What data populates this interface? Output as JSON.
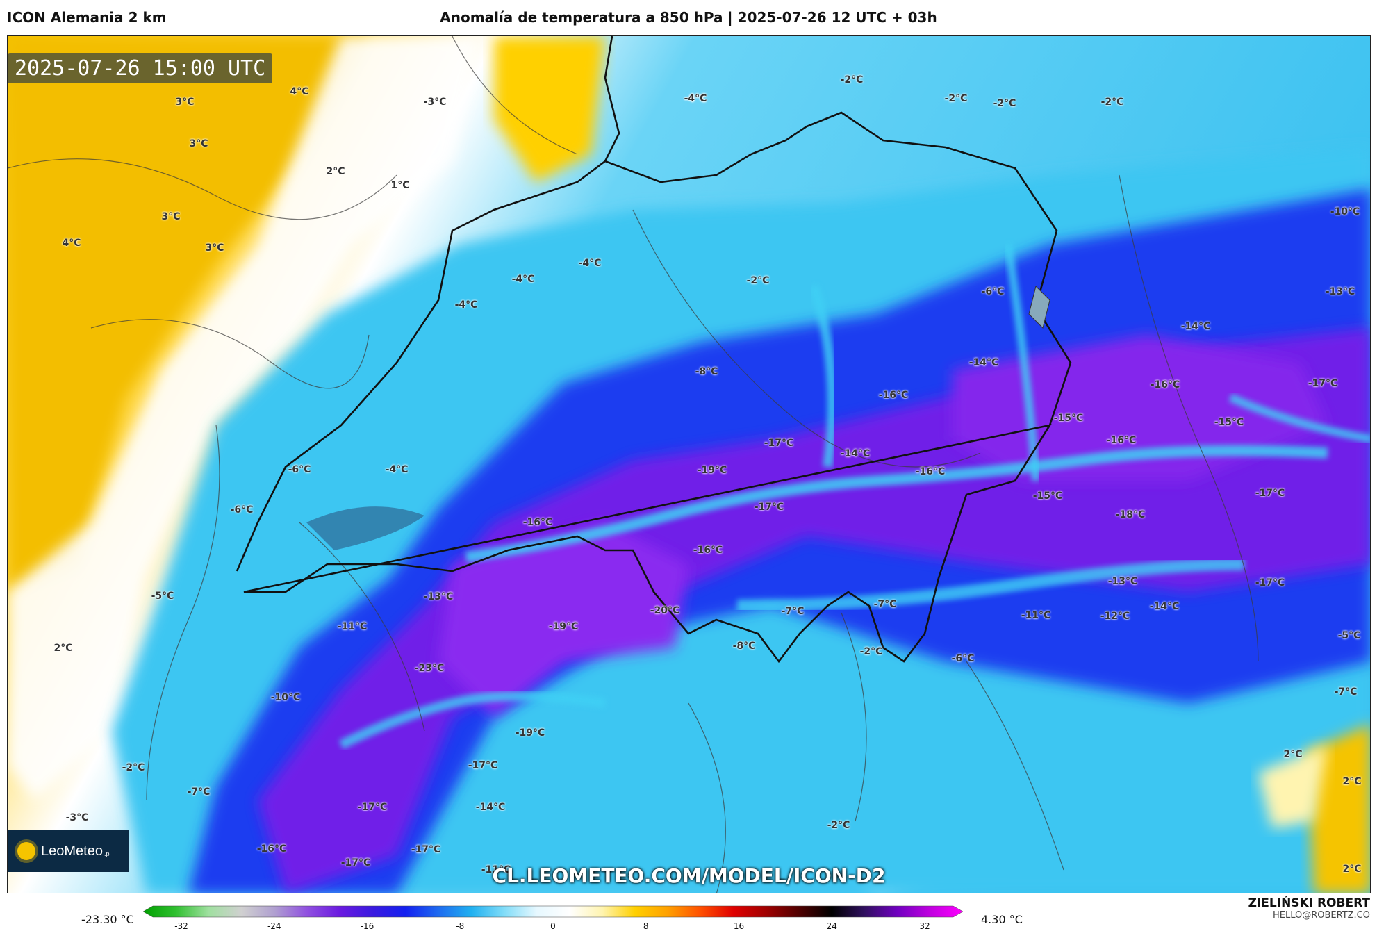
{
  "header": {
    "model": "ICON Alemania 2 km",
    "title": "Anomalía de temperatura a 850 hPa | 2025-07-26 12 UTC + 03h"
  },
  "map": {
    "valid_time": "2025-07-26 15:00 UTC",
    "watermark_url": "CL.LEOMETEO.COM/MODEL/ICON-D2",
    "logo_text": "LeoMeteo",
    "logo_suffix": ".pl",
    "temperature_labels": [
      "4°C",
      "3°C",
      "-3°C",
      "-4°C",
      "-2°C",
      "-2°C",
      "-2°C",
      "-2°C",
      "3°C",
      "2°C",
      "1°C",
      "3°C",
      "4°C",
      "3°C",
      "-4°C",
      "-10°C",
      "-4°C",
      "-4°C",
      "-2°C",
      "-6°C",
      "-13°C",
      "-14°C",
      "-4°C",
      "-8°C",
      "-16°C",
      "-14°C",
      "-16°C",
      "-17°C",
      "-15°C",
      "-15°C",
      "-4°C",
      "-6°C",
      "-17°C",
      "-14°C",
      "-16°C",
      "-19°C",
      "-15°C",
      "-16°C",
      "-17°C",
      "-6°C",
      "-17°C",
      "-18°C",
      "-16°C",
      "-16°C",
      "-13°C",
      "-13°C",
      "-17°C",
      "-5°C",
      "-7°C",
      "-7°C",
      "-20°C",
      "-11°C",
      "-12°C",
      "-14°C",
      "2°C",
      "-11°C",
      "-19°C",
      "-8°C",
      "-2°C",
      "-6°C",
      "-5°C",
      "-23°C",
      "-7°C",
      "-10°C",
      "-19°C",
      "-17°C",
      "-2°C",
      "2°C",
      "-7°C",
      "-17°C",
      "-14°C",
      "2°C",
      "-3°C",
      "-2°C",
      "-16°C",
      "-17°C",
      "-17°C",
      "-11°C",
      "2°C"
    ]
  },
  "colorbar": {
    "min_label": "-23.30 °C",
    "max_label": "4.30 °C",
    "ticks": [
      "-32",
      "-24",
      "-16",
      "-8",
      "0",
      "8",
      "16",
      "24",
      "32"
    ],
    "stops": [
      "#00a000",
      "#30c030",
      "#a0e0a0",
      "#d0d0d0",
      "#b0a0d0",
      "#9050e0",
      "#6a1ae0",
      "#3a1ae0",
      "#1420f0",
      "#1e6af0",
      "#20b0f0",
      "#80dcf8",
      "#e6f8ff",
      "#ffffff",
      "#fff4b0",
      "#ffd000",
      "#ffa000",
      "#ff5000",
      "#e00000",
      "#a00000",
      "#500000",
      "#000000",
      "#301060",
      "#7000c0",
      "#c000e0",
      "#ff00ff"
    ]
  },
  "credit": {
    "name": "ZIELIŃSKI ROBERT",
    "email": "HELLO@ROBERTZ.CO"
  },
  "colors": {
    "warm_anomaly": "#f5c400",
    "neutral": "#ffffff",
    "cold_light": "#30c8f4",
    "cold_mid": "#1a3cf0",
    "cold_strong": "#7a1ae8"
  }
}
